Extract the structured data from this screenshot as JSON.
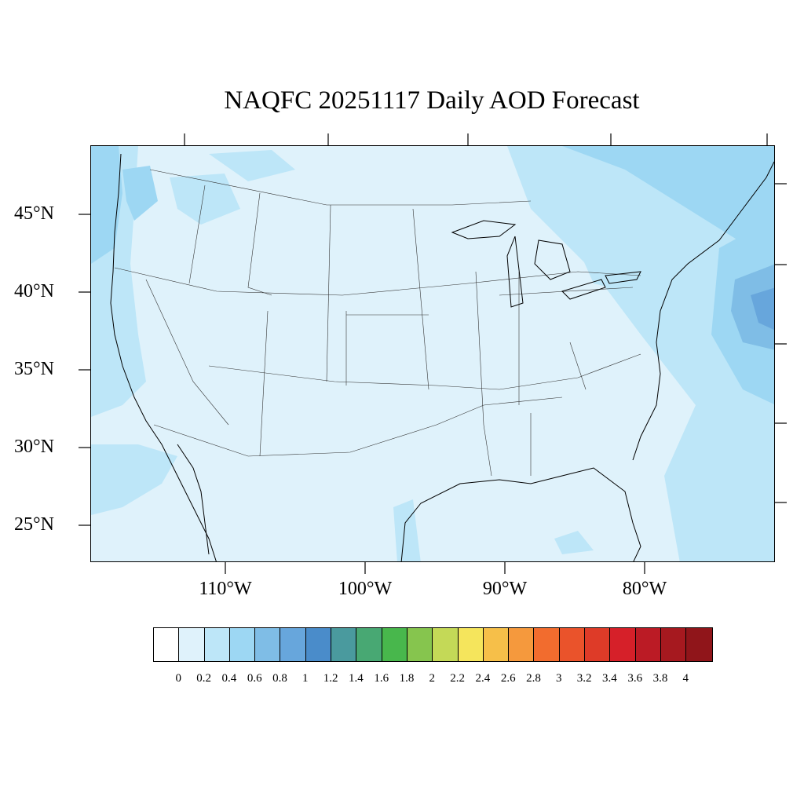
{
  "title": "NAQFC 20251117 Daily AOD Forecast",
  "lat_labels": [
    "45°N",
    "40°N",
    "35°N",
    "30°N",
    "25°N"
  ],
  "lon_labels": [
    "110°W",
    "100°W",
    "90°W",
    "80°W"
  ],
  "colorbar": {
    "labels": [
      "0",
      "0.2",
      "0.4",
      "0.6",
      "0.8",
      "1",
      "1.2",
      "1.4",
      "1.6",
      "1.8",
      "2",
      "2.2",
      "2.4",
      "2.6",
      "2.8",
      "3",
      "3.2",
      "3.4",
      "3.6",
      "3.8",
      "4"
    ],
    "colors": [
      "#ffffff",
      "#dff2fb",
      "#bde6f8",
      "#9dd7f3",
      "#7fbde6",
      "#67a6dc",
      "#4a8cca",
      "#4a9a9e",
      "#48a873",
      "#48b74c",
      "#86c54e",
      "#c4d957",
      "#f5e55c",
      "#f6bf49",
      "#f5993d",
      "#f26c2e",
      "#ea532b",
      "#de3b28",
      "#d62029",
      "#bb1b25",
      "#a6191f",
      "#90151a"
    ]
  },
  "map": {
    "region": "Contiguous United States",
    "variable": "AOD",
    "notable_features": [
      "higher AOD over Pacific Northwest coast",
      "higher AOD off Mid-Atlantic coast",
      "band of moderate AOD from Great Lakes to northeast"
    ]
  }
}
